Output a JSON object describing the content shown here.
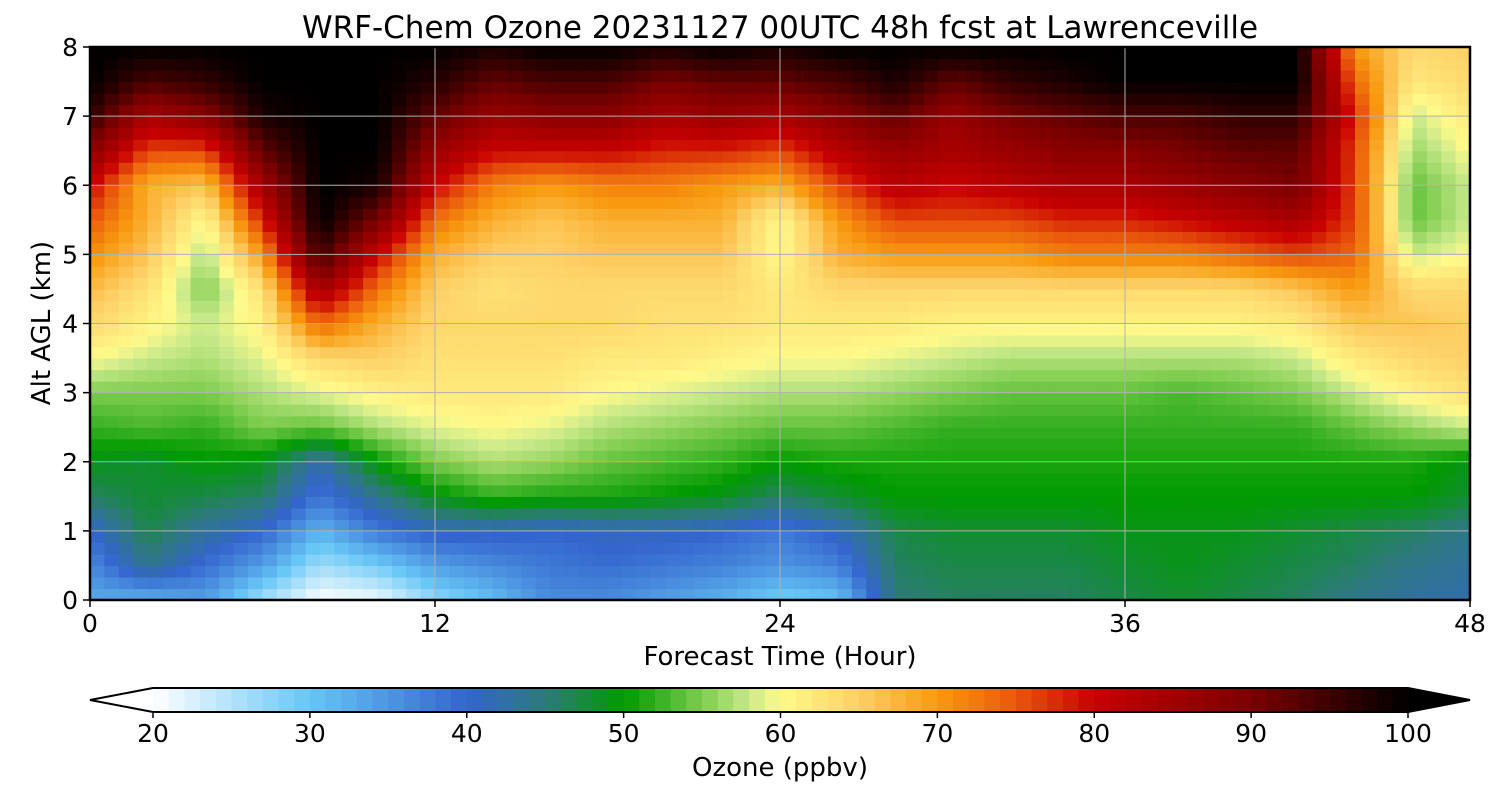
{
  "chart_data": {
    "type": "heatmap",
    "title": "WRF-Chem Ozone  20231127 00UTC 48h fcst at Lawrenceville",
    "xlabel": "Forecast Time (Hour)",
    "ylabel": "Alt AGL (km)",
    "xlim": [
      0,
      48
    ],
    "ylim": [
      0,
      8
    ],
    "xticks": [
      0,
      12,
      24,
      36,
      48
    ],
    "yticks": [
      0,
      1,
      2,
      3,
      4,
      5,
      6,
      7,
      8
    ],
    "grid": true,
    "x": [
      0,
      2,
      4,
      6,
      8,
      10,
      12,
      14,
      16,
      18,
      20,
      22,
      24,
      26,
      28,
      30,
      32,
      34,
      36,
      38,
      40,
      42,
      44,
      46,
      48
    ],
    "y": [
      0,
      0.5,
      1,
      1.5,
      2,
      2.5,
      3,
      3.5,
      4,
      4.5,
      5,
      5.5,
      6,
      6.5,
      7,
      7.5,
      8
    ],
    "z": [
      [
        33,
        32,
        34,
        26,
        20,
        21,
        27,
        31,
        36,
        36,
        34,
        32,
        29,
        30,
        45,
        46,
        46,
        46,
        47,
        48,
        47,
        46,
        44,
        43,
        42
      ],
      [
        36,
        44,
        39,
        34,
        26,
        29,
        34,
        36,
        38,
        39,
        38,
        37,
        35,
        37,
        46,
        47,
        47,
        47,
        48,
        49,
        48,
        47,
        46,
        44,
        43
      ],
      [
        40,
        47,
        43,
        40,
        32,
        38,
        41,
        41,
        40,
        41,
        41,
        40,
        38,
        41,
        47,
        48,
        48,
        48,
        49,
        49,
        49,
        48,
        47,
        46,
        44
      ],
      [
        46,
        48,
        47,
        46,
        38,
        44,
        49,
        52,
        51,
        51,
        50,
        49,
        46,
        48,
        50,
        50,
        50,
        50,
        50,
        50,
        50,
        50,
        50,
        50,
        48
      ],
      [
        49,
        48,
        50,
        49,
        42,
        50,
        55,
        57,
        56,
        54,
        53,
        52,
        50,
        51,
        51,
        51,
        51,
        51,
        51,
        51,
        51,
        51,
        51,
        51,
        49
      ],
      [
        52,
        53,
        52,
        55,
        54,
        57,
        59,
        60,
        59,
        57,
        56,
        55,
        54,
        54,
        53,
        52,
        52,
        52,
        52,
        52,
        52,
        52,
        54,
        56,
        58
      ],
      [
        55,
        55,
        55,
        57,
        59,
        61,
        62,
        62,
        62,
        60,
        59,
        58,
        57,
        57,
        56,
        55,
        54,
        54,
        54,
        53,
        54,
        55,
        58,
        61,
        63
      ],
      [
        60,
        58,
        57,
        59,
        64,
        65,
        63,
        63,
        63,
        62,
        62,
        61,
        60,
        60,
        59,
        58,
        57,
        57,
        57,
        57,
        57,
        58,
        62,
        64,
        65
      ],
      [
        64,
        61,
        58,
        61,
        74,
        68,
        64,
        64,
        64,
        64,
        63,
        63,
        62,
        62,
        62,
        61,
        61,
        61,
        61,
        61,
        61,
        62,
        66,
        66,
        65
      ],
      [
        67,
        63,
        55,
        63,
        85,
        73,
        65,
        63,
        64,
        64,
        64,
        64,
        62,
        64,
        64,
        64,
        64,
        64,
        64,
        64,
        64,
        66,
        70,
        64,
        64
      ],
      [
        71,
        66,
        57,
        70,
        95,
        80,
        68,
        65,
        65,
        66,
        66,
        66,
        60,
        68,
        70,
        70,
        70,
        72,
        72,
        72,
        74,
        76,
        74,
        58,
        60
      ],
      [
        75,
        68,
        60,
        78,
        100,
        90,
        73,
        68,
        66,
        68,
        68,
        68,
        60,
        70,
        76,
        76,
        76,
        78,
        78,
        80,
        82,
        84,
        76,
        54,
        58
      ],
      [
        80,
        68,
        66,
        85,
        100,
        98,
        80,
        72,
        70,
        72,
        72,
        70,
        68,
        76,
        82,
        80,
        82,
        84,
        84,
        86,
        88,
        90,
        76,
        54,
        58
      ],
      [
        88,
        76,
        76,
        92,
        100,
        100,
        86,
        80,
        80,
        80,
        78,
        78,
        76,
        82,
        86,
        84,
        86,
        88,
        88,
        90,
        92,
        92,
        76,
        56,
        60
      ],
      [
        96,
        84,
        88,
        98,
        100,
        100,
        92,
        86,
        88,
        88,
        84,
        86,
        84,
        88,
        92,
        86,
        90,
        92,
        94,
        94,
        96,
        96,
        78,
        58,
        62
      ],
      [
        100,
        94,
        96,
        100,
        100,
        100,
        97,
        92,
        94,
        94,
        90,
        92,
        92,
        94,
        98,
        92,
        96,
        98,
        100,
        100,
        100,
        100,
        74,
        62,
        64
      ],
      [
        100,
        100,
        100,
        100,
        100,
        100,
        100,
        98,
        100,
        100,
        98,
        100,
        98,
        100,
        100,
        100,
        100,
        100,
        100,
        100,
        100,
        100,
        70,
        64,
        65
      ]
    ],
    "colorbar": {
      "label": "Ozone  (ppbv)",
      "min": 20,
      "max": 100,
      "extend": "both",
      "ticks": [
        20,
        30,
        40,
        50,
        60,
        70,
        80,
        90,
        100
      ],
      "colormap": [
        [
          20,
          "#ffffff"
        ],
        [
          30,
          "#66c6f6"
        ],
        [
          40,
          "#3465cd"
        ],
        [
          45,
          "#2d7a7a"
        ],
        [
          50,
          "#009a00"
        ],
        [
          55,
          "#7dcc4e"
        ],
        [
          58,
          "#c8e98a"
        ],
        [
          60,
          "#fffa8a"
        ],
        [
          65,
          "#fdd066"
        ],
        [
          70,
          "#f89a0f"
        ],
        [
          75,
          "#e9580c"
        ],
        [
          80,
          "#c80000"
        ],
        [
          90,
          "#7a0000"
        ],
        [
          100,
          "#000000"
        ]
      ]
    }
  }
}
